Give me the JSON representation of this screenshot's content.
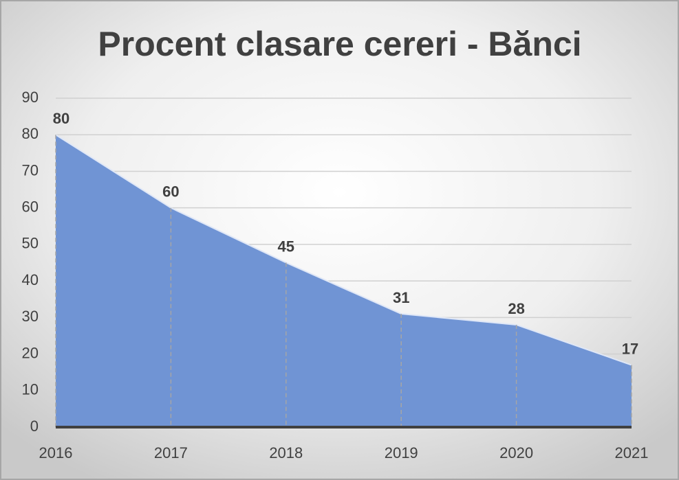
{
  "chart_data": {
    "type": "area",
    "title": "Procent clasare cereri - Bănci",
    "categories": [
      "2016",
      "2017",
      "2018",
      "2019",
      "2020",
      "2021"
    ],
    "values": [
      80,
      60,
      45,
      31,
      28,
      17
    ],
    "color": "#7094d4",
    "ylim": [
      0,
      90
    ],
    "yticks": [
      0,
      10,
      20,
      30,
      40,
      50,
      60,
      70,
      80,
      90
    ],
    "grid": true
  }
}
